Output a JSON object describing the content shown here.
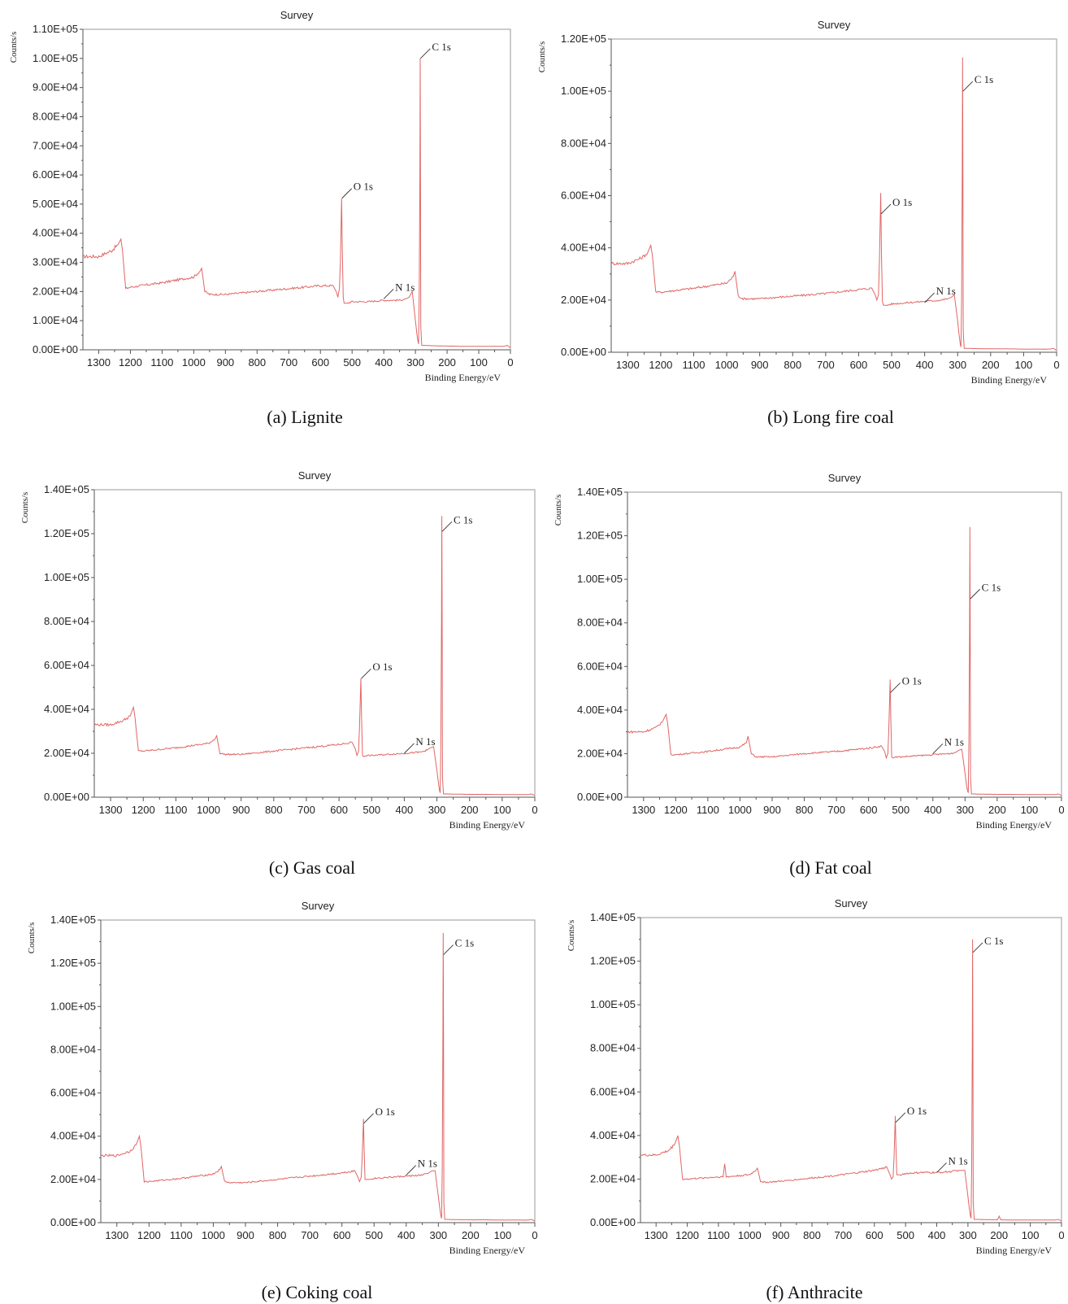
{
  "colors": {
    "spectrum": "#e06666",
    "frame": "#9a9a9a"
  },
  "chart_data": [
    {
      "type": "line",
      "caption": "(a) Lignite",
      "title": "Survey",
      "xlabel": "Binding Energy/eV",
      "ylabel": "Counts/s",
      "xlim": [
        1350,
        0
      ],
      "ylim": [
        0,
        110000
      ],
      "x_ticks": [
        1300,
        1200,
        1100,
        1000,
        900,
        800,
        700,
        600,
        500,
        400,
        300,
        200,
        100,
        0
      ],
      "y_ticks": [
        "0.00E+00",
        "1.00E+04",
        "2.00E+04",
        "3.00E+04",
        "4.00E+04",
        "5.00E+04",
        "6.00E+04",
        "7.00E+04",
        "8.00E+04",
        "9.00E+04",
        "1.00E+05",
        "1.10E+05"
      ],
      "y_tick_values": [
        0,
        10000,
        20000,
        30000,
        40000,
        50000,
        60000,
        70000,
        80000,
        90000,
        100000,
        110000
      ],
      "series": [
        {
          "x": [
            1350,
            1300,
            1260,
            1240,
            1230,
            1225,
            1215,
            1200,
            1100,
            1000,
            980,
            975,
            965,
            950,
            900,
            800,
            700,
            600,
            560,
            550,
            545,
            540,
            537,
            533,
            531,
            528,
            525,
            515,
            500,
            450,
            400,
            350,
            330,
            320,
            310,
            300,
            295,
            292,
            290,
            288,
            286,
            285,
            284,
            283,
            280,
            270,
            250,
            200,
            150,
            100,
            50,
            20,
            10,
            0
          ],
          "y": [
            32000,
            32000,
            34000,
            36000,
            38000,
            34000,
            21000,
            21500,
            23000,
            25000,
            27000,
            28000,
            20000,
            19000,
            19000,
            20000,
            21000,
            22000,
            22000,
            20000,
            18000,
            21000,
            30000,
            52000,
            35000,
            18000,
            16000,
            16000,
            16500,
            16500,
            17000,
            17000,
            17500,
            18000,
            20000,
            10000,
            5000,
            3000,
            2000,
            20000,
            60000,
            100000,
            60000,
            8000,
            1500,
            1500,
            1400,
            1300,
            1200,
            1200,
            1200,
            1200,
            1500,
            700
          ]
        }
      ],
      "annotations": [
        {
          "label": "C 1s",
          "x": 284,
          "y": 100000
        },
        {
          "label": "O 1s",
          "x": 532,
          "y": 52000
        },
        {
          "label": "N 1s",
          "x": 400,
          "y": 17500
        }
      ]
    },
    {
      "type": "line",
      "caption": "(b) Long fire coal",
      "title": "Survey",
      "xlabel": "Binding Energy/eV",
      "ylabel": "Counts/s",
      "xlim": [
        1350,
        0
      ],
      "ylim": [
        0,
        120000
      ],
      "x_ticks": [
        1300,
        1200,
        1100,
        1000,
        900,
        800,
        700,
        600,
        500,
        400,
        300,
        200,
        100,
        0
      ],
      "y_ticks": [
        "0.00E+00",
        "2.00E+04",
        "4.00E+04",
        "6.00E+04",
        "8.00E+04",
        "1.00E+05",
        "1.20E+05"
      ],
      "y_tick_values": [
        0,
        20000,
        40000,
        60000,
        80000,
        100000,
        120000
      ],
      "series": [
        {
          "x": [
            1350,
            1300,
            1260,
            1240,
            1230,
            1225,
            1215,
            1200,
            1100,
            1000,
            980,
            975,
            965,
            950,
            900,
            800,
            700,
            600,
            560,
            550,
            545,
            540,
            537,
            533,
            531,
            528,
            525,
            515,
            500,
            450,
            400,
            350,
            330,
            320,
            310,
            300,
            295,
            292,
            290,
            288,
            286,
            285,
            284,
            283,
            280,
            270,
            250,
            200,
            150,
            100,
            50,
            20,
            10,
            0
          ],
          "y": [
            34000,
            34000,
            36000,
            38000,
            41000,
            37000,
            23000,
            23000,
            24500,
            26500,
            29000,
            31000,
            21500,
            20500,
            20500,
            21500,
            22500,
            24000,
            24500,
            22000,
            20000,
            22000,
            35000,
            61000,
            38000,
            19500,
            18000,
            18000,
            18500,
            19000,
            19500,
            20000,
            20500,
            21000,
            22000,
            12000,
            6000,
            3000,
            2000,
            20000,
            70000,
            113000,
            70000,
            8000,
            1500,
            1500,
            1400,
            1300,
            1300,
            1200,
            1200,
            1200,
            1500,
            700
          ]
        }
      ],
      "annotations": [
        {
          "label": "C 1s",
          "x": 284,
          "y": 100000
        },
        {
          "label": "O 1s",
          "x": 532,
          "y": 53000
        },
        {
          "label": "N 1s",
          "x": 400,
          "y": 19000
        }
      ]
    },
    {
      "type": "line",
      "caption": "(c) Gas coal",
      "title": "Survey",
      "xlabel": "Binding Energy/eV",
      "ylabel": "Counts/s",
      "xlim": [
        1350,
        0
      ],
      "ylim": [
        0,
        140000
      ],
      "x_ticks": [
        1300,
        1200,
        1100,
        1000,
        900,
        800,
        700,
        600,
        500,
        400,
        300,
        200,
        100,
        0
      ],
      "y_ticks": [
        "0.00E+00",
        "2.00E+04",
        "4.00E+04",
        "6.00E+04",
        "8.00E+04",
        "1.00E+05",
        "1.20E+05",
        "1.40E+05"
      ],
      "y_tick_values": [
        0,
        20000,
        40000,
        60000,
        80000,
        100000,
        120000,
        140000
      ],
      "series": [
        {
          "x": [
            1350,
            1300,
            1260,
            1240,
            1230,
            1225,
            1215,
            1200,
            1100,
            1000,
            980,
            975,
            965,
            950,
            900,
            800,
            700,
            600,
            560,
            550,
            545,
            540,
            537,
            533,
            531,
            528,
            525,
            515,
            500,
            450,
            400,
            350,
            330,
            320,
            310,
            300,
            295,
            292,
            290,
            288,
            286,
            285,
            284,
            283,
            280,
            270,
            250,
            200,
            150,
            100,
            50,
            20,
            10,
            0
          ],
          "y": [
            33000,
            33000,
            35000,
            37000,
            41000,
            36000,
            21000,
            21000,
            22500,
            24500,
            26500,
            28000,
            20000,
            19500,
            19500,
            21000,
            22500,
            24000,
            25000,
            22000,
            19000,
            21000,
            33000,
            54000,
            37000,
            19000,
            18500,
            19000,
            19000,
            19500,
            20000,
            20500,
            21500,
            22500,
            23000,
            12000,
            6000,
            3000,
            2000,
            25000,
            80000,
            128000,
            80000,
            9000,
            1500,
            1500,
            1400,
            1300,
            1300,
            1200,
            1200,
            1200,
            1500,
            700
          ]
        }
      ],
      "annotations": [
        {
          "label": "C 1s",
          "x": 284,
          "y": 121000
        },
        {
          "label": "O 1s",
          "x": 532,
          "y": 54000
        },
        {
          "label": "N 1s",
          "x": 400,
          "y": 20000
        }
      ]
    },
    {
      "type": "line",
      "caption": "(d) Fat coal",
      "title": "Survey",
      "xlabel": "Binding Energy/eV",
      "ylabel": "Counts/s",
      "xlim": [
        1350,
        0
      ],
      "ylim": [
        0,
        140000
      ],
      "x_ticks": [
        1300,
        1200,
        1100,
        1000,
        900,
        800,
        700,
        600,
        500,
        400,
        300,
        200,
        100,
        0
      ],
      "y_ticks": [
        "0.00E+00",
        "2.00E+04",
        "4.00E+04",
        "6.00E+04",
        "8.00E+04",
        "1.00E+05",
        "1.20E+05",
        "1.40E+05"
      ],
      "y_tick_values": [
        0,
        20000,
        40000,
        60000,
        80000,
        100000,
        120000,
        140000
      ],
      "series": [
        {
          "x": [
            1350,
            1300,
            1260,
            1240,
            1230,
            1225,
            1215,
            1200,
            1100,
            1000,
            980,
            975,
            965,
            950,
            900,
            800,
            700,
            600,
            560,
            550,
            545,
            540,
            537,
            533,
            531,
            528,
            525,
            515,
            500,
            450,
            400,
            350,
            330,
            320,
            310,
            300,
            295,
            292,
            290,
            288,
            286,
            285,
            284,
            283,
            280,
            270,
            250,
            200,
            150,
            100,
            50,
            20,
            10,
            0
          ],
          "y": [
            30000,
            30000,
            32000,
            35000,
            38000,
            34000,
            19500,
            19500,
            21000,
            23000,
            25000,
            28000,
            20000,
            18500,
            18500,
            20000,
            21000,
            22500,
            23500,
            21000,
            18000,
            20000,
            32000,
            54000,
            36000,
            18500,
            18000,
            18500,
            18500,
            19000,
            19500,
            20000,
            20500,
            21500,
            22000,
            11000,
            5000,
            3000,
            2000,
            25000,
            76000,
            124000,
            76000,
            9000,
            1500,
            1500,
            1400,
            1300,
            1300,
            1200,
            1200,
            1200,
            1500,
            700
          ]
        }
      ],
      "annotations": [
        {
          "label": "C 1s",
          "x": 284,
          "y": 91000
        },
        {
          "label": "O 1s",
          "x": 532,
          "y": 48000
        },
        {
          "label": "N 1s",
          "x": 400,
          "y": 20000
        }
      ]
    },
    {
      "type": "line",
      "caption": "(e) Coking coal",
      "title": "Survey",
      "xlabel": "Binding Energy/eV",
      "ylabel": "Counts/s",
      "xlim": [
        1350,
        0
      ],
      "ylim": [
        0,
        140000
      ],
      "x_ticks": [
        1300,
        1200,
        1100,
        1000,
        900,
        800,
        700,
        600,
        500,
        400,
        300,
        200,
        100,
        0
      ],
      "y_ticks": [
        "0.00E+00",
        "2.00E+04",
        "4.00E+04",
        "6.00E+04",
        "8.00E+04",
        "1.00E+05",
        "1.20E+05",
        "1.40E+05"
      ],
      "y_tick_values": [
        0,
        20000,
        40000,
        60000,
        80000,
        100000,
        120000,
        140000
      ],
      "series": [
        {
          "x": [
            1350,
            1300,
            1260,
            1240,
            1230,
            1225,
            1215,
            1200,
            1100,
            1000,
            980,
            975,
            965,
            950,
            900,
            800,
            700,
            600,
            560,
            550,
            545,
            540,
            537,
            533,
            531,
            528,
            525,
            515,
            500,
            450,
            400,
            350,
            330,
            320,
            310,
            300,
            295,
            292,
            290,
            288,
            286,
            285,
            284,
            283,
            280,
            270,
            250,
            200,
            150,
            100,
            50,
            20,
            10,
            0
          ],
          "y": [
            31000,
            31000,
            33000,
            36000,
            40000,
            35000,
            19000,
            19000,
            20500,
            22500,
            24500,
            26000,
            19000,
            18500,
            18500,
            20000,
            21500,
            23000,
            24000,
            21000,
            19000,
            21000,
            30000,
            48000,
            34000,
            20000,
            20000,
            20000,
            20500,
            21000,
            21500,
            22000,
            23000,
            24000,
            24000,
            12000,
            6000,
            3000,
            2000,
            25000,
            85000,
            134000,
            85000,
            9000,
            1500,
            1500,
            1400,
            1300,
            1300,
            1200,
            1200,
            1200,
            1500,
            700
          ]
        }
      ],
      "annotations": [
        {
          "label": "C 1s",
          "x": 284,
          "y": 124000
        },
        {
          "label": "O 1s",
          "x": 532,
          "y": 46000
        },
        {
          "label": "N 1s",
          "x": 400,
          "y": 22000
        }
      ]
    },
    {
      "type": "line",
      "caption": "(f) Anthracite",
      "title": "Survey",
      "xlabel": "Binding Energy/eV",
      "ylabel": "Counts/s",
      "xlim": [
        1350,
        0
      ],
      "ylim": [
        0,
        140000
      ],
      "x_ticks": [
        1300,
        1200,
        1100,
        1000,
        900,
        800,
        700,
        600,
        500,
        400,
        300,
        200,
        100,
        0
      ],
      "y_ticks": [
        "0.00E+00",
        "2.00E+04",
        "4.00E+04",
        "6.00E+04",
        "8.00E+04",
        "1.00E+05",
        "1.20E+05",
        "1.40E+05"
      ],
      "y_tick_values": [
        0,
        20000,
        40000,
        60000,
        80000,
        100000,
        120000,
        140000
      ],
      "series": [
        {
          "x": [
            1350,
            1300,
            1260,
            1240,
            1230,
            1225,
            1215,
            1200,
            1100,
            1085,
            1080,
            1075,
            1000,
            980,
            975,
            965,
            950,
            900,
            800,
            700,
            600,
            560,
            550,
            545,
            540,
            537,
            533,
            531,
            528,
            525,
            515,
            500,
            450,
            400,
            350,
            330,
            320,
            310,
            300,
            295,
            292,
            290,
            288,
            286,
            285,
            284,
            283,
            280,
            270,
            250,
            205,
            200,
            195,
            150,
            100,
            50,
            20,
            10,
            0
          ],
          "y": [
            31000,
            31000,
            33000,
            36000,
            40000,
            35000,
            20000,
            20000,
            21000,
            21000,
            27000,
            21000,
            22000,
            24000,
            25000,
            19000,
            18500,
            19000,
            20500,
            22000,
            24000,
            25500,
            22000,
            20000,
            21000,
            30000,
            49000,
            35000,
            22000,
            22000,
            22000,
            22500,
            23000,
            23000,
            23500,
            24000,
            24000,
            24000,
            12000,
            6000,
            3000,
            2000,
            25000,
            85000,
            130000,
            85000,
            9000,
            1500,
            1500,
            1400,
            1300,
            3000,
            1300,
            1200,
            1200,
            1200,
            1200,
            1500,
            700
          ]
        }
      ],
      "annotations": [
        {
          "label": "C 1s",
          "x": 284,
          "y": 124000
        },
        {
          "label": "O 1s",
          "x": 532,
          "y": 46000
        },
        {
          "label": "N 1s",
          "x": 400,
          "y": 23000
        }
      ]
    }
  ]
}
